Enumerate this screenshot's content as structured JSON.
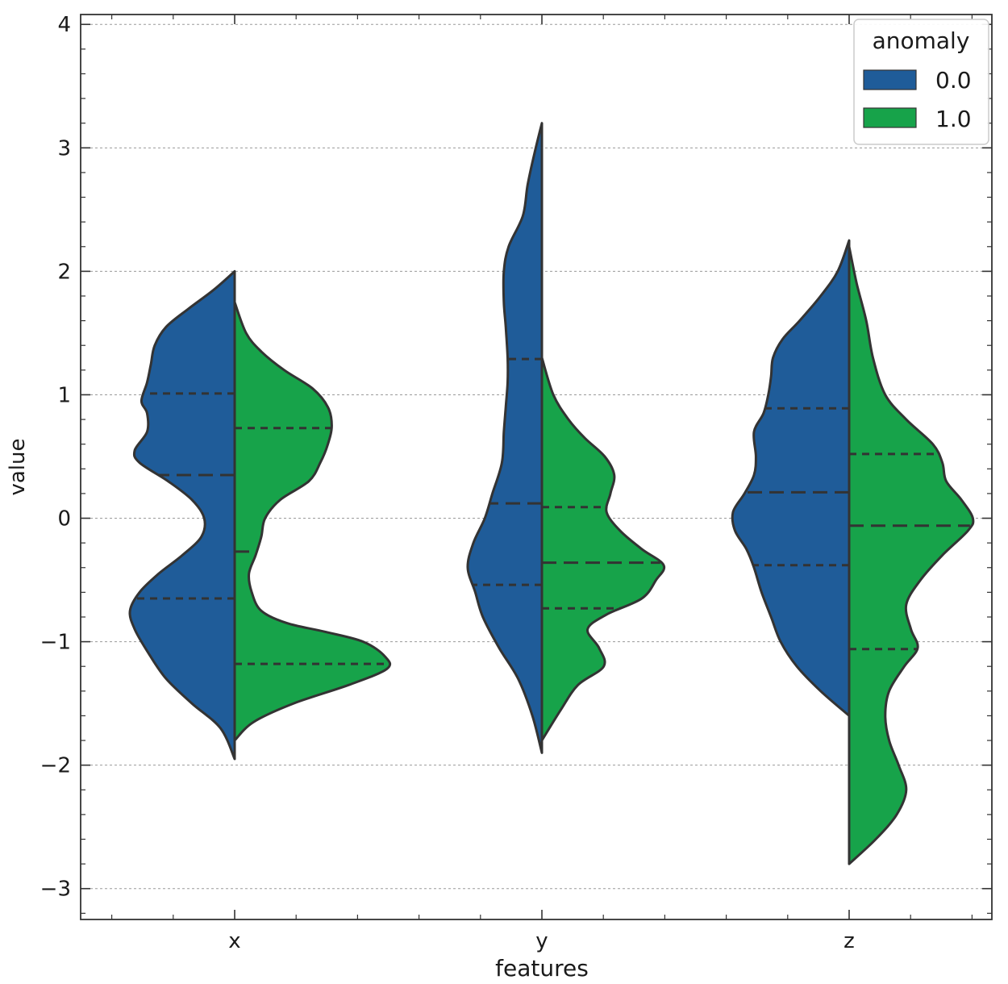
{
  "chart_data": {
    "type": "violin",
    "split": true,
    "inner": "quartile",
    "title": "",
    "xlabel": "features",
    "ylabel": "value",
    "categories": [
      "x",
      "y",
      "z"
    ],
    "ylim": [
      -3.25,
      4.08
    ],
    "yticks": [
      -3,
      -2,
      -1,
      0,
      1,
      2,
      3,
      4
    ],
    "ytick_labels": [
      "−3",
      "−2",
      "−1",
      "0",
      "1",
      "2",
      "3",
      "4"
    ],
    "grid": "horizontal-dashed",
    "legend": {
      "title": "anomaly",
      "position": "top-right",
      "entries": [
        {
          "label": "0.0",
          "color": "#1f5c99"
        },
        {
          "label": "1.0",
          "color": "#17a34a"
        }
      ]
    },
    "violins": [
      {
        "category": "x",
        "series": [
          {
            "name": "0.0",
            "color": "#1f5c99",
            "range": [
              -1.95,
              2.0
            ],
            "quartiles": [
              -0.65,
              0.35,
              1.01
            ],
            "density": [
              [
                -1.95,
                0.0
              ],
              [
                -1.7,
                0.15
              ],
              [
                -1.5,
                0.45
              ],
              [
                -1.3,
                0.72
              ],
              [
                -1.1,
                0.9
              ],
              [
                -0.9,
                1.05
              ],
              [
                -0.75,
                1.1
              ],
              [
                -0.6,
                1.0
              ],
              [
                -0.45,
                0.8
              ],
              [
                -0.3,
                0.55
              ],
              [
                -0.15,
                0.35
              ],
              [
                0.0,
                0.32
              ],
              [
                0.15,
                0.45
              ],
              [
                0.3,
                0.7
              ],
              [
                0.45,
                1.0
              ],
              [
                0.55,
                1.05
              ],
              [
                0.7,
                0.92
              ],
              [
                0.85,
                0.92
              ],
              [
                0.95,
                0.98
              ],
              [
                1.1,
                0.92
              ],
              [
                1.25,
                0.88
              ],
              [
                1.4,
                0.84
              ],
              [
                1.55,
                0.72
              ],
              [
                1.7,
                0.48
              ],
              [
                1.85,
                0.22
              ],
              [
                2.0,
                0.0
              ]
            ]
          },
          {
            "name": "1.0",
            "color": "#17a34a",
            "range": [
              -1.8,
              1.75
            ],
            "quartiles": [
              -1.18,
              -0.27,
              0.73
            ],
            "density": [
              [
                -1.8,
                0.0
              ],
              [
                -1.65,
                0.2
              ],
              [
                -1.5,
                0.62
              ],
              [
                -1.35,
                1.2
              ],
              [
                -1.22,
                1.6
              ],
              [
                -1.12,
                1.58
              ],
              [
                -1.0,
                1.35
              ],
              [
                -0.92,
                0.95
              ],
              [
                -0.85,
                0.55
              ],
              [
                -0.75,
                0.28
              ],
              [
                -0.6,
                0.18
              ],
              [
                -0.45,
                0.15
              ],
              [
                -0.3,
                0.22
              ],
              [
                -0.15,
                0.28
              ],
              [
                0.0,
                0.32
              ],
              [
                0.15,
                0.48
              ],
              [
                0.3,
                0.78
              ],
              [
                0.45,
                0.9
              ],
              [
                0.6,
                0.98
              ],
              [
                0.75,
                1.02
              ],
              [
                0.9,
                0.98
              ],
              [
                1.05,
                0.82
              ],
              [
                1.2,
                0.52
              ],
              [
                1.35,
                0.28
              ],
              [
                1.5,
                0.12
              ],
              [
                1.75,
                0.0
              ]
            ]
          }
        ]
      },
      {
        "category": "y",
        "series": [
          {
            "name": "0.0",
            "color": "#1f5c99",
            "range": [
              -1.9,
              3.2
            ],
            "quartiles": [
              -0.54,
              0.12,
              1.29
            ],
            "density": [
              [
                -1.9,
                0.0
              ],
              [
                -1.6,
                0.1
              ],
              [
                -1.3,
                0.25
              ],
              [
                -1.05,
                0.45
              ],
              [
                -0.8,
                0.62
              ],
              [
                -0.6,
                0.7
              ],
              [
                -0.4,
                0.78
              ],
              [
                -0.2,
                0.72
              ],
              [
                0.0,
                0.6
              ],
              [
                0.2,
                0.52
              ],
              [
                0.45,
                0.42
              ],
              [
                0.7,
                0.4
              ],
              [
                0.9,
                0.38
              ],
              [
                1.1,
                0.36
              ],
              [
                1.3,
                0.36
              ],
              [
                1.55,
                0.38
              ],
              [
                1.75,
                0.4
              ],
              [
                2.0,
                0.4
              ],
              [
                2.2,
                0.35
              ],
              [
                2.45,
                0.2
              ],
              [
                2.7,
                0.15
              ],
              [
                2.95,
                0.08
              ],
              [
                3.2,
                0.0
              ]
            ]
          },
          {
            "name": "1.0",
            "color": "#17a34a",
            "range": [
              -1.8,
              1.3
            ],
            "quartiles": [
              -0.73,
              -0.36,
              0.09
            ],
            "density": [
              [
                -1.8,
                0.0
              ],
              [
                -1.55,
                0.2
              ],
              [
                -1.35,
                0.38
              ],
              [
                -1.2,
                0.65
              ],
              [
                -1.05,
                0.6
              ],
              [
                -0.9,
                0.48
              ],
              [
                -0.78,
                0.68
              ],
              [
                -0.65,
                1.05
              ],
              [
                -0.5,
                1.2
              ],
              [
                -0.38,
                1.28
              ],
              [
                -0.25,
                1.05
              ],
              [
                -0.1,
                0.82
              ],
              [
                0.05,
                0.68
              ],
              [
                0.2,
                0.72
              ],
              [
                0.35,
                0.76
              ],
              [
                0.5,
                0.66
              ],
              [
                0.65,
                0.45
              ],
              [
                0.8,
                0.28
              ],
              [
                1.0,
                0.12
              ],
              [
                1.3,
                0.0
              ]
            ]
          }
        ]
      },
      {
        "category": "z",
        "series": [
          {
            "name": "0.0",
            "color": "#1f5c99",
            "range": [
              -1.6,
              2.25
            ],
            "quartiles": [
              -0.38,
              0.21,
              0.89
            ],
            "density": [
              [
                -1.6,
                0.0
              ],
              [
                -1.4,
                0.3
              ],
              [
                -1.2,
                0.55
              ],
              [
                -1.0,
                0.72
              ],
              [
                -0.8,
                0.82
              ],
              [
                -0.6,
                0.92
              ],
              [
                -0.4,
                1.0
              ],
              [
                -0.25,
                1.08
              ],
              [
                -0.1,
                1.2
              ],
              [
                0.05,
                1.22
              ],
              [
                0.2,
                1.1
              ],
              [
                0.35,
                1.0
              ],
              [
                0.5,
                0.98
              ],
              [
                0.7,
                1.0
              ],
              [
                0.85,
                0.9
              ],
              [
                1.0,
                0.85
              ],
              [
                1.15,
                0.82
              ],
              [
                1.3,
                0.8
              ],
              [
                1.45,
                0.7
              ],
              [
                1.6,
                0.52
              ],
              [
                1.8,
                0.3
              ],
              [
                2.0,
                0.12
              ],
              [
                2.25,
                0.0
              ]
            ]
          },
          {
            "name": "1.0",
            "color": "#17a34a",
            "range": [
              -2.8,
              2.2
            ],
            "quartiles": [
              -1.06,
              -0.06,
              0.52
            ],
            "density": [
              [
                -2.8,
                0.0
              ],
              [
                -2.6,
                0.28
              ],
              [
                -2.4,
                0.5
              ],
              [
                -2.2,
                0.6
              ],
              [
                -2.0,
                0.52
              ],
              [
                -1.8,
                0.42
              ],
              [
                -1.6,
                0.38
              ],
              [
                -1.4,
                0.42
              ],
              [
                -1.2,
                0.58
              ],
              [
                -1.05,
                0.72
              ],
              [
                -0.9,
                0.65
              ],
              [
                -0.7,
                0.6
              ],
              [
                -0.5,
                0.75
              ],
              [
                -0.3,
                0.98
              ],
              [
                -0.1,
                1.25
              ],
              [
                0.0,
                1.3
              ],
              [
                0.15,
                1.18
              ],
              [
                0.3,
                1.02
              ],
              [
                0.45,
                0.98
              ],
              [
                0.6,
                0.88
              ],
              [
                0.8,
                0.6
              ],
              [
                1.0,
                0.38
              ],
              [
                1.3,
                0.25
              ],
              [
                1.6,
                0.18
              ],
              [
                1.9,
                0.08
              ],
              [
                2.2,
                0.0
              ]
            ]
          }
        ]
      }
    ]
  }
}
